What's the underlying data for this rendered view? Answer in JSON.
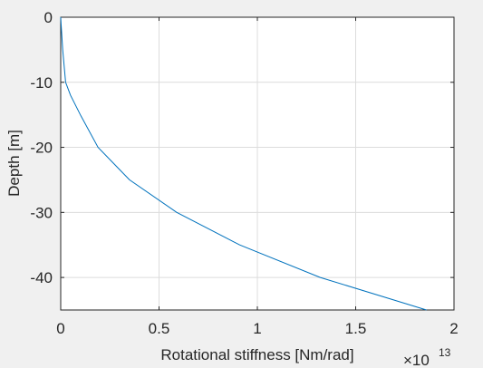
{
  "chart_data": {
    "type": "line",
    "title": "",
    "xlabel": "Rotational stiffness [Nm/rad]",
    "ylabel": "Depth [m]",
    "x_exponent_base": "×10",
    "x_exponent_power": "13",
    "xlim": [
      0,
      2
    ],
    "ylim": [
      -45,
      0
    ],
    "xticks": [
      0,
      0.5,
      1,
      1.5,
      2
    ],
    "xtick_labels": [
      "0",
      "0.5",
      "1",
      "1.5",
      "2"
    ],
    "yticks": [
      0,
      -10,
      -20,
      -30,
      -40
    ],
    "ytick_labels": [
      "0",
      "-10",
      "-20",
      "-30",
      "-40"
    ],
    "grid": true,
    "line_color": "#0072bd",
    "series": [
      {
        "x": [
          0,
          0.002,
          0.01,
          0.025,
          0.05,
          0.1,
          0.19,
          0.35,
          0.59,
          0.91,
          1.32,
          1.86
        ],
        "y": [
          0,
          -1,
          -5,
          -10,
          -12,
          -15,
          -20,
          -25,
          -30,
          -35,
          -40,
          -45
        ]
      }
    ]
  }
}
